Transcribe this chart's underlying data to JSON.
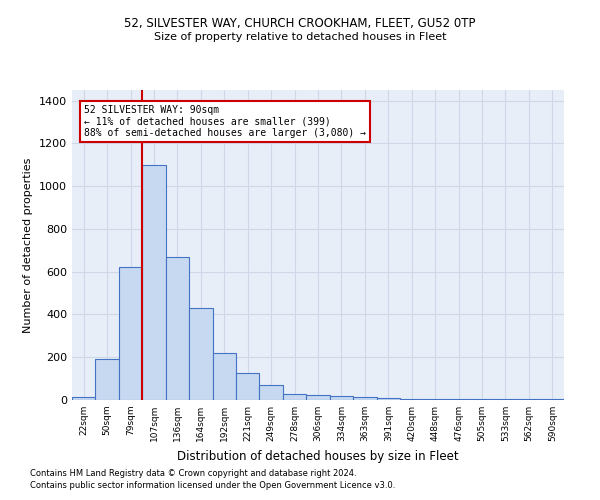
{
  "title1": "52, SILVESTER WAY, CHURCH CROOKHAM, FLEET, GU52 0TP",
  "title2": "Size of property relative to detached houses in Fleet",
  "xlabel": "Distribution of detached houses by size in Fleet",
  "ylabel": "Number of detached properties",
  "footnote1": "Contains HM Land Registry data © Crown copyright and database right 2024.",
  "footnote2": "Contains public sector information licensed under the Open Government Licence v3.0.",
  "categories": [
    "22sqm",
    "50sqm",
    "79sqm",
    "107sqm",
    "136sqm",
    "164sqm",
    "192sqm",
    "221sqm",
    "249sqm",
    "278sqm",
    "306sqm",
    "334sqm",
    "363sqm",
    "391sqm",
    "420sqm",
    "448sqm",
    "476sqm",
    "505sqm",
    "533sqm",
    "562sqm",
    "590sqm"
  ],
  "values": [
    15,
    190,
    620,
    1100,
    670,
    430,
    220,
    125,
    70,
    30,
    25,
    20,
    12,
    8,
    5,
    5,
    3,
    5,
    3,
    3,
    5
  ],
  "bar_color": "#c6d9f1",
  "bar_edge_color": "#4472c4",
  "grid_color": "#d0d8e8",
  "background_color": "#e8eef8",
  "vline_x": 2.5,
  "vline_color": "#cc0000",
  "annotation_line1": "52 SILVESTER WAY: 90sqm",
  "annotation_line2": "← 11% of detached houses are smaller (399)",
  "annotation_line3": "88% of semi-detached houses are larger (3,080) →",
  "annotation_box_color": "#cc0000",
  "ylim": [
    0,
    1450
  ],
  "yticks": [
    0,
    200,
    400,
    600,
    800,
    1000,
    1200,
    1400
  ]
}
